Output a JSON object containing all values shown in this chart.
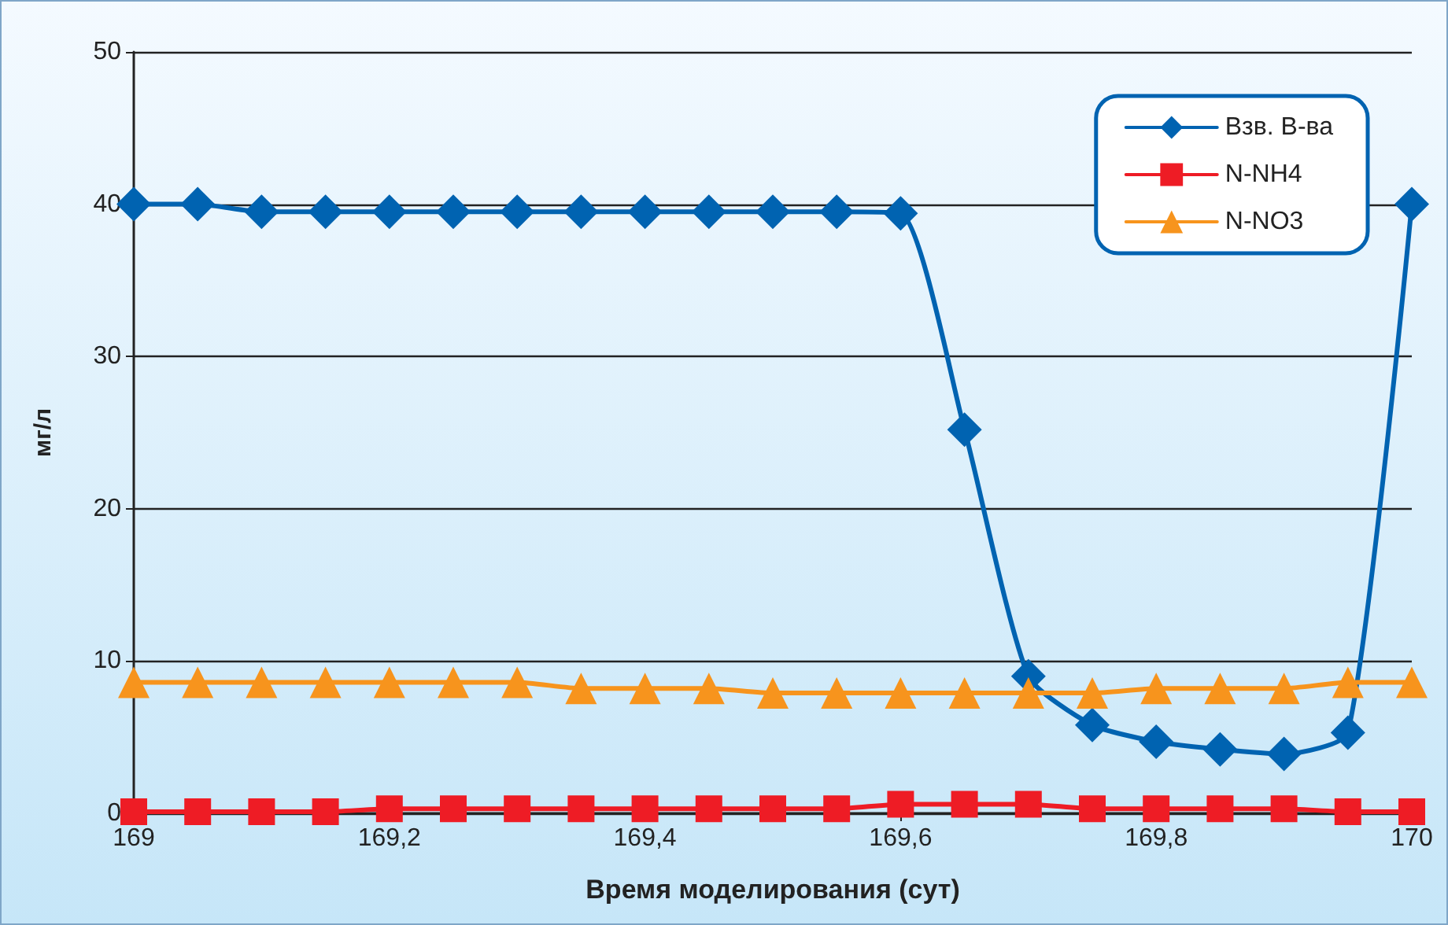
{
  "chart_data": {
    "type": "line",
    "xlabel": "Время моделирования (сут)",
    "ylabel": "мг/л",
    "x": [
      169,
      169.05,
      169.1,
      169.15,
      169.2,
      169.25,
      169.3,
      169.35,
      169.4,
      169.45,
      169.5,
      169.55,
      169.6,
      169.65,
      169.7,
      169.75,
      169.8,
      169.85,
      169.9,
      169.95,
      170
    ],
    "series": [
      {
        "name": "Взв. В-ва",
        "color": "#0063b1",
        "marker": "diamond",
        "values": [
          40,
          40,
          39.5,
          39.5,
          39.5,
          39.5,
          39.5,
          39.5,
          39.5,
          39.5,
          39.5,
          39.5,
          39.4,
          25.2,
          9,
          5.8,
          4.7,
          4.2,
          3.9,
          5.3,
          40
        ]
      },
      {
        "name": "N-NH4",
        "color": "#ee1c25",
        "marker": "square",
        "values": [
          0.1,
          0.1,
          0.1,
          0.1,
          0.3,
          0.3,
          0.3,
          0.3,
          0.3,
          0.3,
          0.3,
          0.3,
          0.6,
          0.6,
          0.6,
          0.3,
          0.3,
          0.3,
          0.3,
          0.1,
          0.1
        ]
      },
      {
        "name": "N-NO3",
        "color": "#f7941d",
        "marker": "triangle",
        "values": [
          8.6,
          8.6,
          8.6,
          8.6,
          8.6,
          8.6,
          8.6,
          8.2,
          8.2,
          8.2,
          7.9,
          7.9,
          7.9,
          7.9,
          7.9,
          7.9,
          8.2,
          8.2,
          8.2,
          8.6,
          8.6
        ]
      }
    ],
    "xlim": [
      169,
      170
    ],
    "xticks": [
      169,
      {
        "value": 169.2,
        "label": "169,2"
      },
      {
        "value": 169.4,
        "label": "169,4"
      },
      {
        "value": 169.6,
        "label": "169,6"
      },
      {
        "value": 169.8,
        "label": "169,8"
      },
      170
    ],
    "ylim": [
      0,
      50
    ],
    "yticks": [
      0,
      10,
      20,
      30,
      40,
      50
    ],
    "grid": "y",
    "legend": "top right",
    "line_style": "solid"
  }
}
